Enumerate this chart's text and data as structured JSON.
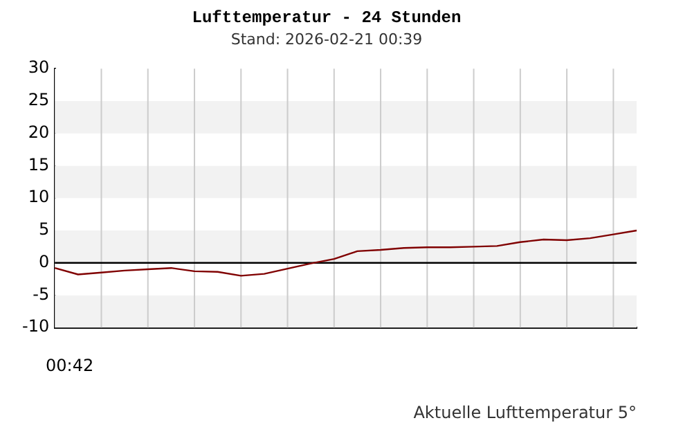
{
  "chart_data": {
    "type": "line",
    "title": "Lufttemperatur - 24 Stunden",
    "subtitle": "Stand: 2026-02-21 00:39",
    "annotations": [
      "00:42",
      "Aktuelle Lufttemperatur 5°"
    ],
    "categories": [
      null,
      null,
      null,
      null,
      null,
      null,
      null,
      null,
      null,
      null,
      null,
      null,
      null,
      null,
      null,
      null,
      null,
      null,
      null,
      null,
      null,
      null,
      null,
      null,
      null,
      null
    ],
    "series": [
      {
        "color": "#800000",
        "values": [
          -0.8,
          -1.8,
          -1.5,
          -1.2,
          -1.0,
          -0.8,
          -1.3,
          -1.4,
          -2.0,
          -1.7,
          -0.9,
          -0.1,
          0.6,
          1.8,
          2.0,
          2.3,
          2.4,
          2.4,
          2.5,
          2.6,
          3.2,
          3.6,
          3.5,
          3.8,
          4.4,
          5.0
        ]
      }
    ],
    "ylim": [
      -10,
      30
    ],
    "yticks": [
      -10,
      -5,
      0,
      5,
      10,
      15,
      20,
      25,
      30
    ],
    "ref_lines": [
      {
        "axis": "y",
        "value": 0,
        "color": "#000000"
      }
    ],
    "grid": true,
    "legend": false,
    "marker": "none",
    "line_style": "solid"
  }
}
